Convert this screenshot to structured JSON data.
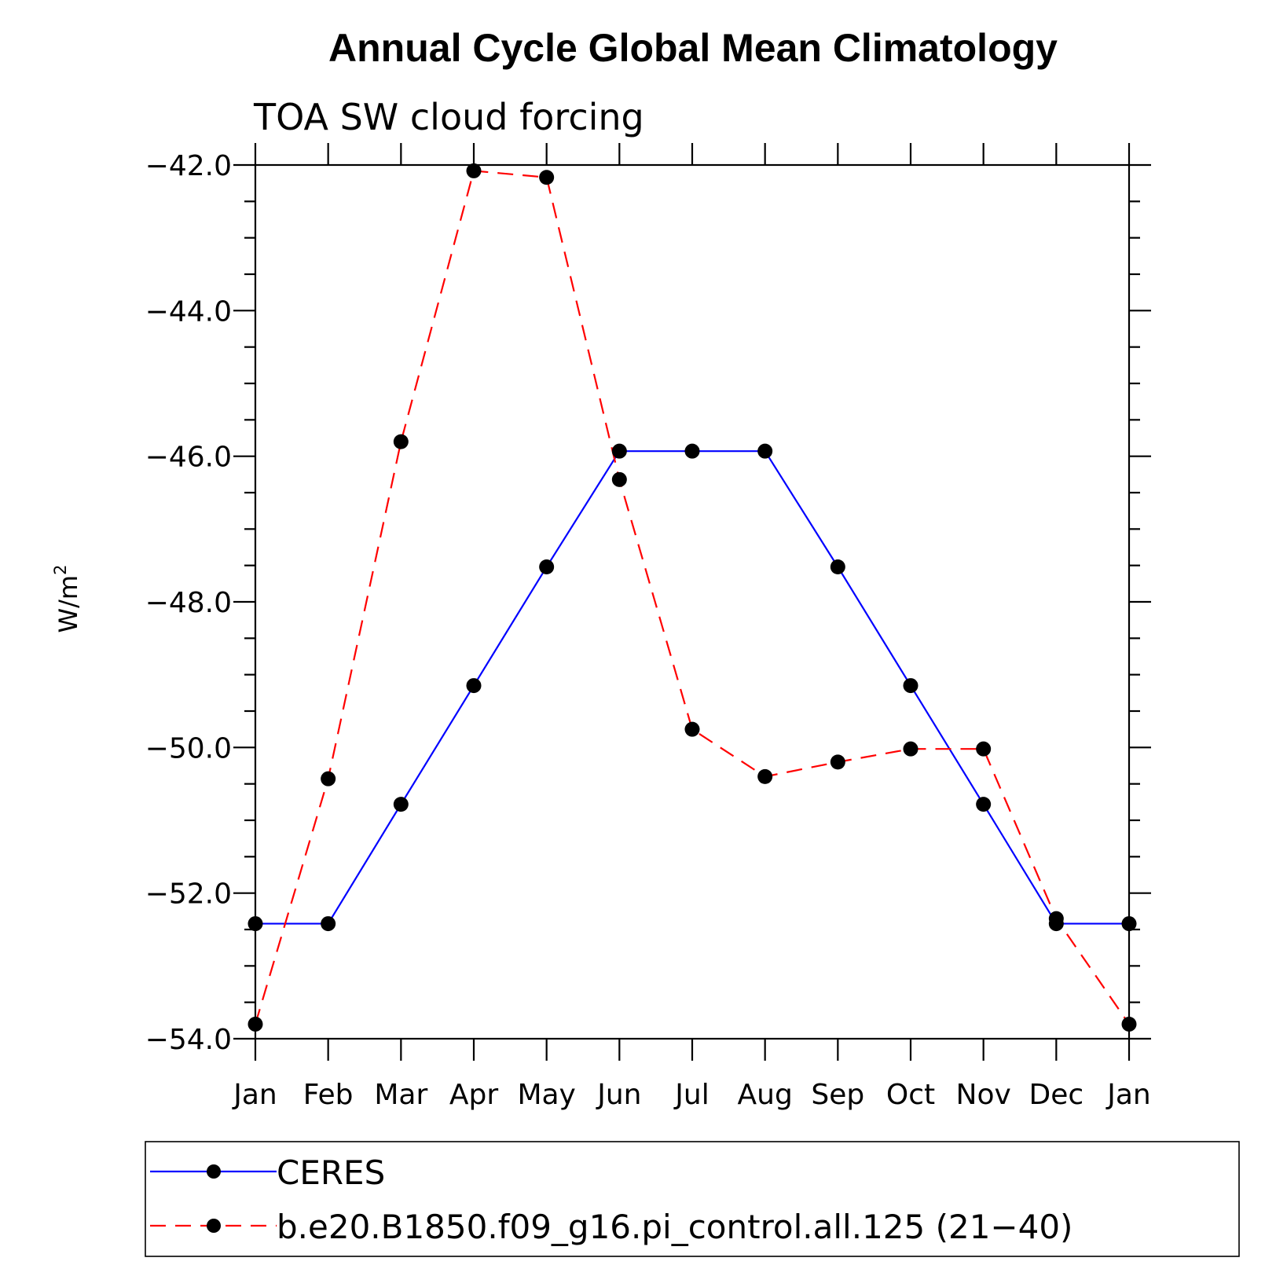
{
  "chart_data": {
    "type": "line",
    "title": "Annual Cycle Global Mean Climatology",
    "subtitle": "TOA SW cloud forcing",
    "ylabel": "W/m",
    "ylabel_sup": "2",
    "xlabel": "",
    "categories": [
      "Jan",
      "Feb",
      "Mar",
      "Apr",
      "May",
      "Jun",
      "Jul",
      "Aug",
      "Sep",
      "Oct",
      "Nov",
      "Dec",
      "Jan"
    ],
    "ylim": [
      -54.0,
      -42.0
    ],
    "yticks": [
      -42.0,
      -44.0,
      -46.0,
      -48.0,
      -50.0,
      -52.0,
      -54.0
    ],
    "ytick_labels": [
      "−42.0",
      "−44.0",
      "−46.0",
      "−48.0",
      "−50.0",
      "−52.0",
      "−54.0"
    ],
    "grid": false,
    "legend_position": "bottom",
    "series": [
      {
        "name": "CERES",
        "color": "#0000ff",
        "dash": "solid",
        "values": [
          -52.42,
          -52.42,
          -50.78,
          -49.15,
          -47.52,
          -45.93,
          -45.93,
          -45.93,
          -47.52,
          -49.15,
          -50.78,
          -52.42,
          -52.42
        ]
      },
      {
        "name": "b.e20.B1850.f09_g16.pi_control.all.125 (21−40)",
        "color": "#ff0000",
        "dash": "dashed",
        "values": [
          -53.8,
          -50.43,
          -45.8,
          -42.08,
          -42.17,
          -46.32,
          -49.75,
          -50.4,
          -50.2,
          -50.02,
          -50.02,
          -52.35,
          -53.8
        ]
      }
    ]
  }
}
